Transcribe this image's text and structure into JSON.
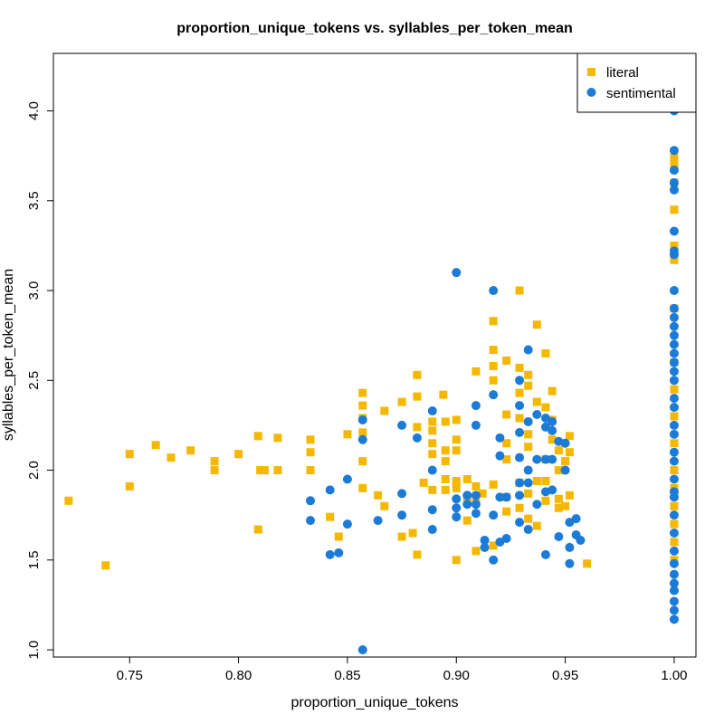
{
  "chart_data": {
    "type": "scatter",
    "title": "proportion_unique_tokens vs. syllables_per_token_mean",
    "xlabel": "proportion_unique_tokens",
    "ylabel": "syllables_per_token_mean",
    "xlim": [
      0.715,
      1.01
    ],
    "ylim": [
      0.96,
      4.32
    ],
    "xticks": [
      "0.75",
      "0.80",
      "0.85",
      "0.90",
      "0.95",
      "1.00"
    ],
    "yticks": [
      "1.0",
      "1.5",
      "2.0",
      "2.5",
      "3.0",
      "3.5",
      "4.0"
    ],
    "grid": false,
    "legend_position": "top-right",
    "series": [
      {
        "name": "literal",
        "color": "#f5b800",
        "marker": "square",
        "points": [
          [
            0.722,
            1.83
          ],
          [
            0.739,
            1.47
          ],
          [
            0.75,
            2.09
          ],
          [
            0.75,
            1.91
          ],
          [
            0.762,
            2.14
          ],
          [
            0.769,
            2.07
          ],
          [
            0.778,
            2.11
          ],
          [
            0.789,
            2.05
          ],
          [
            0.789,
            2.0
          ],
          [
            0.8,
            2.09
          ],
          [
            0.809,
            2.19
          ],
          [
            0.809,
            1.67
          ],
          [
            0.81,
            2.0
          ],
          [
            0.812,
            2.0
          ],
          [
            0.818,
            2.18
          ],
          [
            0.818,
            2.0
          ],
          [
            0.833,
            2.17
          ],
          [
            0.833,
            2.1
          ],
          [
            0.833,
            2.0
          ],
          [
            0.842,
            1.74
          ],
          [
            0.846,
            1.63
          ],
          [
            0.85,
            2.2
          ],
          [
            0.857,
            2.43
          ],
          [
            0.857,
            2.36
          ],
          [
            0.857,
            2.29
          ],
          [
            0.857,
            2.21
          ],
          [
            0.857,
            2.05
          ],
          [
            0.857,
            1.9
          ],
          [
            0.864,
            1.86
          ],
          [
            0.867,
            1.8
          ],
          [
            0.867,
            2.33
          ],
          [
            0.875,
            2.38
          ],
          [
            0.875,
            1.63
          ],
          [
            0.88,
            1.65
          ],
          [
            0.882,
            2.53
          ],
          [
            0.882,
            2.41
          ],
          [
            0.882,
            2.24
          ],
          [
            0.882,
            1.53
          ],
          [
            0.885,
            1.93
          ],
          [
            0.889,
            2.27
          ],
          [
            0.889,
            2.22
          ],
          [
            0.889,
            2.15
          ],
          [
            0.889,
            2.09
          ],
          [
            0.889,
            1.89
          ],
          [
            0.894,
            2.42
          ],
          [
            0.895,
            2.27
          ],
          [
            0.895,
            2.11
          ],
          [
            0.895,
            2.05
          ],
          [
            0.895,
            1.95
          ],
          [
            0.895,
            1.89
          ],
          [
            0.9,
            2.28
          ],
          [
            0.9,
            2.17
          ],
          [
            0.9,
            2.11
          ],
          [
            0.9,
            1.94
          ],
          [
            0.9,
            1.9
          ],
          [
            0.9,
            1.5
          ],
          [
            0.905,
            1.95
          ],
          [
            0.905,
            1.84
          ],
          [
            0.905,
            1.72
          ],
          [
            0.909,
            1.91
          ],
          [
            0.909,
            1.82
          ],
          [
            0.909,
            1.55
          ],
          [
            0.909,
            2.55
          ],
          [
            0.912,
            1.87
          ],
          [
            0.917,
            2.83
          ],
          [
            0.917,
            2.67
          ],
          [
            0.917,
            2.58
          ],
          [
            0.917,
            2.5
          ],
          [
            0.917,
            1.92
          ],
          [
            0.917,
            1.58
          ],
          [
            0.923,
            2.61
          ],
          [
            0.923,
            2.31
          ],
          [
            0.923,
            2.15
          ],
          [
            0.923,
            2.06
          ],
          [
            0.923,
            1.85
          ],
          [
            0.923,
            1.77
          ],
          [
            0.929,
            3.0
          ],
          [
            0.929,
            2.57
          ],
          [
            0.929,
            2.43
          ],
          [
            0.929,
            2.29
          ],
          [
            0.929,
            1.93
          ],
          [
            0.929,
            1.79
          ],
          [
            0.933,
            2.53
          ],
          [
            0.933,
            2.47
          ],
          [
            0.933,
            2.2
          ],
          [
            0.933,
            2.13
          ],
          [
            0.933,
            1.87
          ],
          [
            0.933,
            1.73
          ],
          [
            0.937,
            2.81
          ],
          [
            0.937,
            2.38
          ],
          [
            0.937,
            1.94
          ],
          [
            0.937,
            1.69
          ],
          [
            0.941,
            2.65
          ],
          [
            0.941,
            2.35
          ],
          [
            0.941,
            2.06
          ],
          [
            0.941,
            1.94
          ],
          [
            0.941,
            1.83
          ],
          [
            0.944,
            2.44
          ],
          [
            0.944,
            2.28
          ],
          [
            0.944,
            2.17
          ],
          [
            0.947,
            2.11
          ],
          [
            0.947,
            2.0
          ],
          [
            0.947,
            1.84
          ],
          [
            0.947,
            1.79
          ],
          [
            0.95,
            2.05
          ],
          [
            0.95,
            1.8
          ],
          [
            0.952,
            2.19
          ],
          [
            0.952,
            2.1
          ],
          [
            0.952,
            1.86
          ],
          [
            0.96,
            1.48
          ],
          [
            1.0,
            3.74
          ],
          [
            1.0,
            3.7
          ],
          [
            1.0,
            3.6
          ],
          [
            1.0,
            3.45
          ],
          [
            1.0,
            3.25
          ],
          [
            1.0,
            3.17
          ],
          [
            1.0,
            2.9
          ],
          [
            1.0,
            2.6
          ],
          [
            1.0,
            2.45
          ],
          [
            1.0,
            2.3
          ],
          [
            1.0,
            2.15
          ],
          [
            1.0,
            2.0
          ],
          [
            1.0,
            1.9
          ],
          [
            1.0,
            1.8
          ],
          [
            1.0,
            1.7
          ],
          [
            1.0,
            1.6
          ],
          [
            1.0,
            1.5
          ]
        ]
      },
      {
        "name": "sentimental",
        "color": "#1b7bd6",
        "marker": "circle",
        "points": [
          [
            0.833,
            1.83
          ],
          [
            0.833,
            1.72
          ],
          [
            0.842,
            1.89
          ],
          [
            0.842,
            1.53
          ],
          [
            0.846,
            1.54
          ],
          [
            0.85,
            1.95
          ],
          [
            0.85,
            1.7
          ],
          [
            0.857,
            2.28
          ],
          [
            0.857,
            2.17
          ],
          [
            0.857,
            1.0
          ],
          [
            0.864,
            1.72
          ],
          [
            0.875,
            2.25
          ],
          [
            0.875,
            1.87
          ],
          [
            0.875,
            1.75
          ],
          [
            0.882,
            2.18
          ],
          [
            0.889,
            2.33
          ],
          [
            0.889,
            2.0
          ],
          [
            0.889,
            1.78
          ],
          [
            0.889,
            1.67
          ],
          [
            0.9,
            3.1
          ],
          [
            0.9,
            1.84
          ],
          [
            0.9,
            1.79
          ],
          [
            0.9,
            1.74
          ],
          [
            0.905,
            1.86
          ],
          [
            0.905,
            1.81
          ],
          [
            0.909,
            2.36
          ],
          [
            0.909,
            2.25
          ],
          [
            0.909,
            1.86
          ],
          [
            0.909,
            1.81
          ],
          [
            0.909,
            1.76
          ],
          [
            0.913,
            1.61
          ],
          [
            0.913,
            1.57
          ],
          [
            0.917,
            3.0
          ],
          [
            0.917,
            2.42
          ],
          [
            0.917,
            1.75
          ],
          [
            0.917,
            1.5
          ],
          [
            0.92,
            1.6
          ],
          [
            0.92,
            2.18
          ],
          [
            0.92,
            2.08
          ],
          [
            0.92,
            1.85
          ],
          [
            0.923,
            1.85
          ],
          [
            0.923,
            1.62
          ],
          [
            0.929,
            2.5
          ],
          [
            0.929,
            2.36
          ],
          [
            0.929,
            2.21
          ],
          [
            0.929,
            2.07
          ],
          [
            0.929,
            1.93
          ],
          [
            0.929,
            1.86
          ],
          [
            0.929,
            1.71
          ],
          [
            0.933,
            2.67
          ],
          [
            0.933,
            2.27
          ],
          [
            0.933,
            2.0
          ],
          [
            0.933,
            1.93
          ],
          [
            0.933,
            1.67
          ],
          [
            0.937,
            2.31
          ],
          [
            0.937,
            2.06
          ],
          [
            0.937,
            1.81
          ],
          [
            0.941,
            2.29
          ],
          [
            0.941,
            2.24
          ],
          [
            0.941,
            2.06
          ],
          [
            0.941,
            1.88
          ],
          [
            0.941,
            1.53
          ],
          [
            0.944,
            2.27
          ],
          [
            0.944,
            2.22
          ],
          [
            0.944,
            2.06
          ],
          [
            0.944,
            1.89
          ],
          [
            0.947,
            2.16
          ],
          [
            0.947,
            1.63
          ],
          [
            0.95,
            2.15
          ],
          [
            0.95,
            2.0
          ],
          [
            0.952,
            1.71
          ],
          [
            0.952,
            1.57
          ],
          [
            0.952,
            1.48
          ],
          [
            0.955,
            1.73
          ],
          [
            0.955,
            1.64
          ],
          [
            0.957,
            1.61
          ],
          [
            1.0,
            4.0
          ],
          [
            1.0,
            3.78
          ],
          [
            1.0,
            3.67
          ],
          [
            1.0,
            3.6
          ],
          [
            1.0,
            3.56
          ],
          [
            1.0,
            3.33
          ],
          [
            1.0,
            3.22
          ],
          [
            1.0,
            3.2
          ],
          [
            1.0,
            3.0
          ],
          [
            1.0,
            2.9
          ],
          [
            1.0,
            2.85
          ],
          [
            1.0,
            2.8
          ],
          [
            1.0,
            2.75
          ],
          [
            1.0,
            2.7
          ],
          [
            1.0,
            2.65
          ],
          [
            1.0,
            2.6
          ],
          [
            1.0,
            2.55
          ],
          [
            1.0,
            2.5
          ],
          [
            1.0,
            2.4
          ],
          [
            1.0,
            2.35
          ],
          [
            1.0,
            2.25
          ],
          [
            1.0,
            2.2
          ],
          [
            1.0,
            2.1
          ],
          [
            1.0,
            2.05
          ],
          [
            1.0,
            1.95
          ],
          [
            1.0,
            1.88
          ],
          [
            1.0,
            1.85
          ],
          [
            1.0,
            1.75
          ],
          [
            1.0,
            1.65
          ],
          [
            1.0,
            1.55
          ],
          [
            1.0,
            1.48
          ],
          [
            1.0,
            1.42
          ],
          [
            1.0,
            1.37
          ],
          [
            1.0,
            1.33
          ],
          [
            1.0,
            1.27
          ],
          [
            1.0,
            1.22
          ],
          [
            1.0,
            1.17
          ]
        ]
      }
    ]
  }
}
